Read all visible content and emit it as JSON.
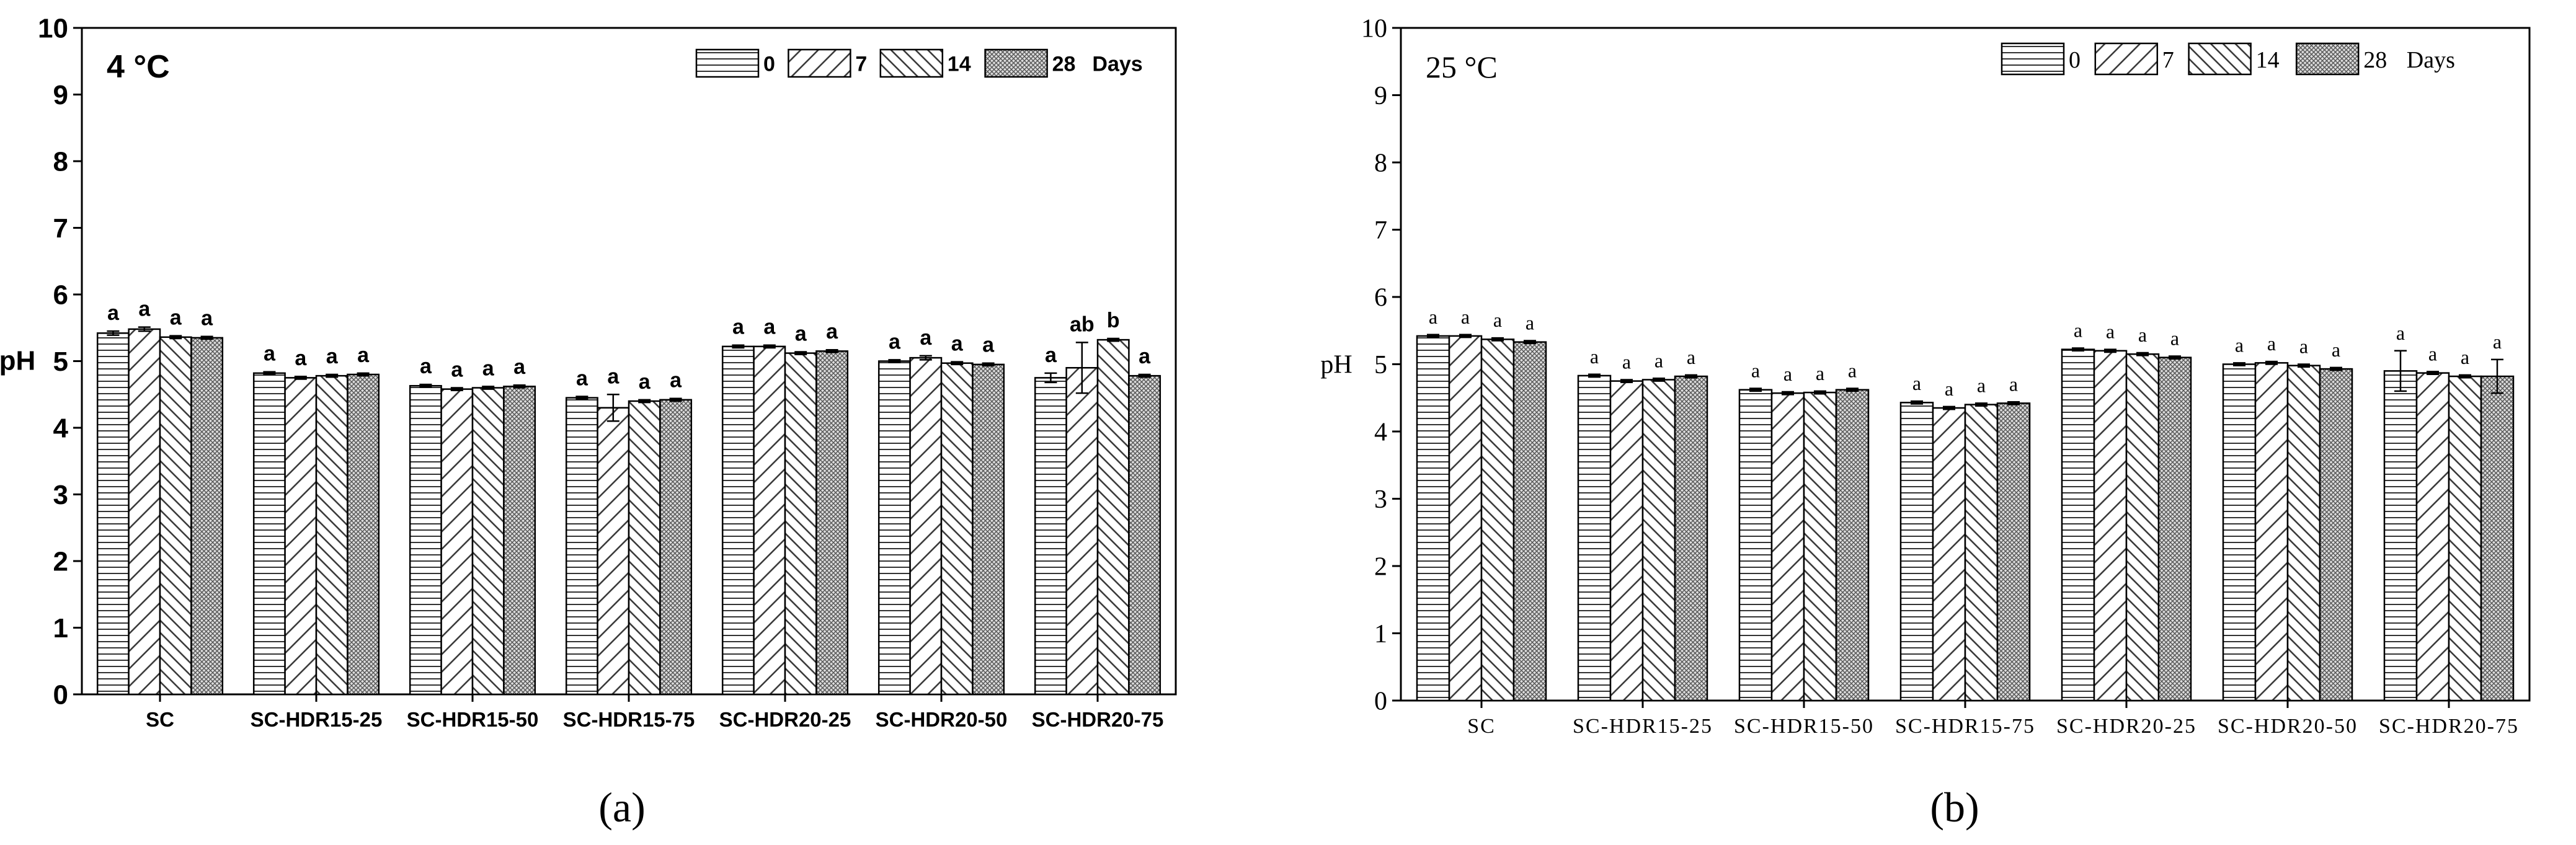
{
  "panels": [
    {
      "id": "a",
      "caption": "(a)",
      "chart_data": {
        "type": "bar",
        "title": "4 °C",
        "xlabel": "",
        "ylabel": "pH",
        "ylim": [
          0,
          10
        ],
        "yticks": [
          0,
          1,
          2,
          3,
          4,
          5,
          6,
          7,
          8,
          9,
          10
        ],
        "categories": [
          "SC",
          "SC-HDR15-25",
          "SC-HDR15-50",
          "SC-HDR15-75",
          "SC-HDR20-25",
          "SC-HDR20-50",
          "SC-HDR20-75"
        ],
        "legend_title": "Days",
        "legend_position": "top-right",
        "series": [
          {
            "name": "0",
            "pattern": "horizontal",
            "values": [
              5.42,
              4.82,
              4.63,
              4.45,
              5.22,
              5.0,
              4.75
            ],
            "errors": [
              0.03,
              0.02,
              0.02,
              0.02,
              0.02,
              0.02,
              0.07
            ],
            "letters": [
              "a",
              "a",
              "a",
              "a",
              "a",
              "a",
              "a"
            ]
          },
          {
            "name": "7",
            "pattern": "diagonal",
            "values": [
              5.48,
              4.75,
              4.58,
              4.3,
              5.22,
              5.05,
              4.9
            ],
            "errors": [
              0.03,
              0.02,
              0.02,
              0.2,
              0.02,
              0.03,
              0.38
            ],
            "letters": [
              "a",
              "a",
              "a",
              "a",
              "a",
              "a",
              "ab"
            ]
          },
          {
            "name": "14",
            "pattern": "backslash",
            "values": [
              5.36,
              4.78,
              4.6,
              4.4,
              5.12,
              4.97,
              5.32
            ],
            "errors": [
              0.02,
              0.02,
              0.02,
              0.02,
              0.02,
              0.02,
              0.02
            ],
            "letters": [
              "a",
              "a",
              "a",
              "a",
              "a",
              "a",
              "b"
            ]
          },
          {
            "name": "28",
            "pattern": "crosshatch",
            "values": [
              5.35,
              4.8,
              4.62,
              4.42,
              5.15,
              4.95,
              4.78
            ],
            "errors": [
              0.02,
              0.02,
              0.02,
              0.02,
              0.02,
              0.02,
              0.02
            ],
            "letters": [
              "a",
              "a",
              "a",
              "a",
              "a",
              "a",
              "a"
            ]
          }
        ]
      }
    },
    {
      "id": "b",
      "caption": "(b)",
      "chart_data": {
        "type": "bar",
        "title": "25 °C",
        "xlabel": "",
        "ylabel": "pH",
        "ylim": [
          0,
          10
        ],
        "yticks": [
          0,
          1,
          2,
          3,
          4,
          5,
          6,
          7,
          8,
          9,
          10
        ],
        "categories": [
          "SC",
          "SC-HDR15-25",
          "SC-HDR15-50",
          "SC-HDR15-75",
          "SC-HDR20-25",
          "SC-HDR20-50",
          "SC-HDR20-75"
        ],
        "legend_title": "Days",
        "legend_position": "top-right",
        "series": [
          {
            "name": "0",
            "pattern": "horizontal",
            "values": [
              5.42,
              4.83,
              4.62,
              4.43,
              5.22,
              5.0,
              4.9
            ],
            "errors": [
              0.02,
              0.02,
              0.02,
              0.02,
              0.02,
              0.02,
              0.3
            ],
            "letters": [
              "a",
              "a",
              "a",
              "a",
              "a",
              "a",
              "a"
            ]
          },
          {
            "name": "7",
            "pattern": "diagonal",
            "values": [
              5.42,
              4.75,
              4.57,
              4.35,
              5.2,
              5.02,
              4.87
            ],
            "errors": [
              0.02,
              0.02,
              0.02,
              0.02,
              0.02,
              0.02,
              0.02
            ],
            "letters": [
              "a",
              "a",
              "a",
              "a",
              "a",
              "a",
              "a"
            ]
          },
          {
            "name": "14",
            "pattern": "backslash",
            "values": [
              5.37,
              4.77,
              4.58,
              4.4,
              5.15,
              4.98,
              4.82
            ],
            "errors": [
              0.02,
              0.02,
              0.02,
              0.02,
              0.02,
              0.02,
              0.02
            ],
            "letters": [
              "a",
              "a",
              "a",
              "a",
              "a",
              "a",
              "a"
            ]
          },
          {
            "name": "28",
            "pattern": "crosshatch",
            "values": [
              5.33,
              4.82,
              4.62,
              4.42,
              5.1,
              4.93,
              4.82
            ],
            "errors": [
              0.02,
              0.02,
              0.02,
              0.02,
              0.02,
              0.02,
              0.25
            ],
            "letters": [
              "a",
              "a",
              "a",
              "a",
              "a",
              "a",
              "a"
            ]
          }
        ]
      }
    }
  ]
}
